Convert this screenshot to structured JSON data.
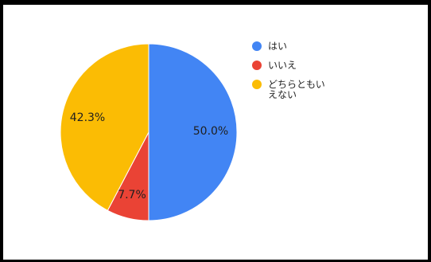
{
  "chart_data": {
    "type": "pie",
    "title": "",
    "legend_position": "right",
    "slices": [
      {
        "label": "はい",
        "value": 50.0,
        "display": "50.0%",
        "color": "#4285F4"
      },
      {
        "label": "いいえ",
        "value": 7.7,
        "display": "7.7%",
        "color": "#EA4335"
      },
      {
        "label": "どちらともいえない",
        "label_lines": [
          "どちらともい",
          "えない"
        ],
        "value": 42.3,
        "display": "42.3%",
        "color": "#FBBC04"
      }
    ]
  }
}
